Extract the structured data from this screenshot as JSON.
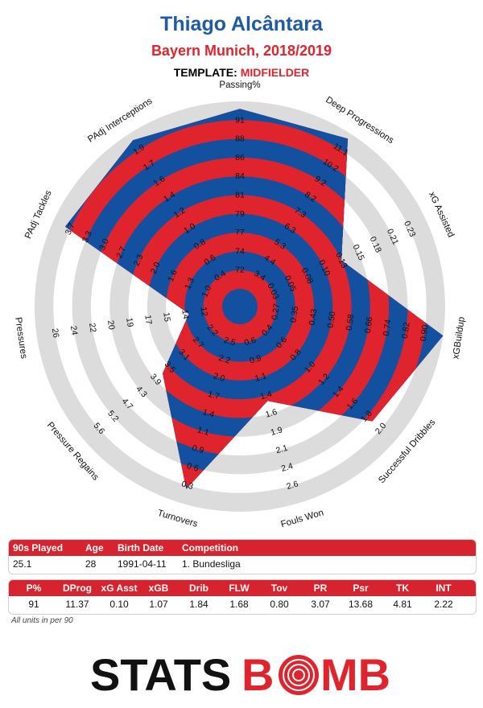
{
  "header": {
    "player_name": "Thiago Alcântara",
    "team_season": "Bayern Munich, 2018/2019",
    "template_label": "TEMPLATE:",
    "template_value": "MIDFIELDER"
  },
  "colors": {
    "red": "#e0242e",
    "blue": "#1450a0",
    "ring_grey": "#dcdcdc",
    "title_blue": "#1f5aa6"
  },
  "chart_data": {
    "type": "radar",
    "rings": 10,
    "axes": [
      {
        "label": "Passing%",
        "ticks": [
          "72",
          "74",
          "77",
          "79",
          "81",
          "84",
          "86",
          "88",
          "91"
        ],
        "value_ring": 9.6
      },
      {
        "label": "Deep Progressions",
        "ticks": [
          "3.4",
          "4.4",
          "5.3",
          "6.3",
          "7.3",
          "8.2",
          "9.2",
          "10.2",
          "11.1"
        ],
        "value_ring": 9.7
      },
      {
        "label": "xG Assisted",
        "ticks": [
          "0.03",
          "0.05",
          "0.08",
          "0.10",
          "0.13",
          "0.15",
          "0.18",
          "0.21",
          "0.23"
        ],
        "value_ring": 5.0
      },
      {
        "label": "xGBuildup",
        "ticks": [
          "0.27",
          "0.35",
          "0.43",
          "0.50",
          "0.58",
          "0.66",
          "0.74",
          "0.82",
          "0.90"
        ],
        "value_ring": 10.0
      },
      {
        "label": "Successful Dribbles",
        "ticks": [
          "0.4",
          "0.6",
          "0.8",
          "1.0",
          "1.2",
          "1.4",
          "1.6",
          "1.8",
          "2.0"
        ],
        "value_ring": 8.4
      },
      {
        "label": "Fouls Won",
        "ticks": [
          "0.6",
          "0.9",
          "1.1",
          "1.4",
          "1.6",
          "1.9",
          "2.1",
          "2.4",
          "2.6"
        ],
        "value_ring": 4.3
      },
      {
        "label": "Turnovers",
        "ticks": [
          "2.5",
          "2.2",
          "2.0",
          "1.7",
          "1.4",
          "1.1",
          "0.9",
          "0.6",
          "0.3"
        ],
        "value_ring": 9.2
      },
      {
        "label": "Pressure Regains",
        "ticks": [
          "2.2",
          "2.7",
          "3.1",
          "3.5",
          "3.9",
          "4.3",
          "4.7",
          "5.2",
          "5.6"
        ],
        "value_ring": 4.5
      },
      {
        "label": "Pressures",
        "ticks": [
          "12",
          "14",
          "15",
          "17",
          "19",
          "20",
          "22",
          "24",
          "26"
        ],
        "value_ring": 1.8
      },
      {
        "label": "PAdj Tackles",
        "ticks": [
          "1.0",
          "1.3",
          "1.6",
          "2.0",
          "2.3",
          "2.7",
          "3.0",
          "3.3",
          "3.7"
        ],
        "value_ring": 9.3
      },
      {
        "label": "PAdj Interceptions",
        "ticks": [
          "0.4",
          "0.6",
          "0.8",
          "1.0",
          "1.2",
          "1.4",
          "1.6",
          "1.7",
          "1.9"
        ],
        "value_ring": 9.6
      }
    ]
  },
  "info_table": {
    "headers": [
      "90s Played",
      "Age",
      "Birth Date",
      "Competition"
    ],
    "values": [
      "25.1",
      "28",
      "1991-04-11",
      "1. Bundesliga"
    ]
  },
  "metrics_table": {
    "headers": [
      "P%",
      "DProg",
      "xG Asst",
      "xGB",
      "Drib",
      "FLW",
      "Tov",
      "PR",
      "Psr",
      "TK",
      "INT"
    ],
    "values": [
      "91",
      "11.37",
      "0.10",
      "1.07",
      "1.84",
      "1.68",
      "0.80",
      "3.07",
      "13.68",
      "4.81",
      "2.22"
    ]
  },
  "footnote": "All units in per 90",
  "logo": {
    "part1": "STATS",
    "part2": "B",
    "part3": "MB"
  }
}
